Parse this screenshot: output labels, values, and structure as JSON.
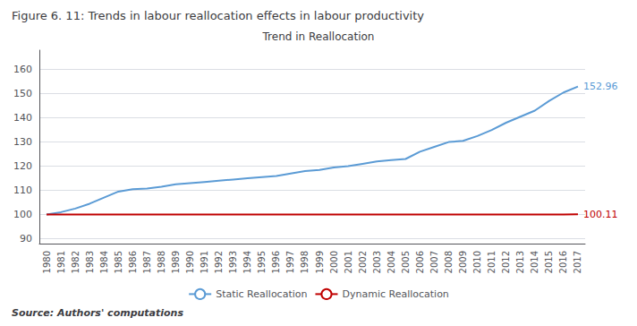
{
  "chart_data": {
    "type": "line",
    "title": "Figure 6. 11: Trends in labour reallocation effects in labour productivity",
    "subtitle": "Trend in Reallocation",
    "source": "Source: Authors' computations",
    "categories": [
      "1980",
      "1981",
      "1982",
      "1983",
      "1984",
      "1985",
      "1986",
      "1987",
      "1988",
      "1989",
      "1990",
      "1991",
      "1992",
      "1993",
      "1994",
      "1995",
      "1996",
      "1997",
      "1998",
      "1999",
      "2000",
      "2001",
      "2002",
      "2003",
      "2004",
      "2005",
      "2006",
      "2007",
      "2008",
      "2009",
      "2010",
      "2011",
      "2012",
      "2013",
      "2014",
      "2015",
      "2016",
      "2017"
    ],
    "series": [
      {
        "name": "Static Reallocation",
        "color": "#5B9BD5",
        "values": [
          100.0,
          101.0,
          102.5,
          104.5,
          107.0,
          109.5,
          110.5,
          110.8,
          111.5,
          112.5,
          113.0,
          113.5,
          114.0,
          114.5,
          115.0,
          115.5,
          116.0,
          117.0,
          118.0,
          118.5,
          119.5,
          120.0,
          121.0,
          122.0,
          122.5,
          123.0,
          126.0,
          128.0,
          130.0,
          130.5,
          132.5,
          135.0,
          138.0,
          140.5,
          143.0,
          147.0,
          150.5,
          152.96
        ]
      },
      {
        "name": "Dynamic Reallocation",
        "color": "#C00000",
        "values": [
          100.0,
          100.0,
          100.0,
          100.0,
          100.0,
          100.0,
          100.0,
          100.0,
          100.0,
          100.0,
          100.0,
          100.0,
          100.0,
          100.0,
          100.0,
          100.0,
          100.0,
          100.0,
          100.0,
          100.0,
          100.0,
          100.0,
          100.0,
          100.0,
          100.0,
          100.0,
          100.0,
          100.0,
          100.0,
          100.0,
          100.0,
          100.0,
          100.0,
          100.0,
          100.0,
          100.0,
          100.0,
          100.11
        ]
      }
    ],
    "annotations": [
      {
        "text": "152.96",
        "x": "2017",
        "y": 152.96,
        "series": "Static Reallocation"
      },
      {
        "text": "100.11",
        "x": "2017",
        "y": 100.11,
        "series": "Dynamic Reallocation"
      }
    ],
    "ylim": [
      88,
      168
    ],
    "yticks": [
      90,
      100,
      110,
      120,
      130,
      140,
      150,
      160
    ],
    "grid": true,
    "legend": "bottom"
  }
}
